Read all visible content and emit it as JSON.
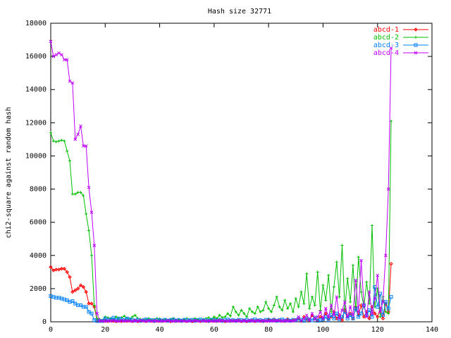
{
  "chart_data": {
    "type": "line",
    "title": "Hash size 32771",
    "ylabel": "chi2-square against random hash",
    "x": [
      0,
      1,
      2,
      3,
      4,
      5,
      6,
      7,
      8,
      9,
      10,
      11,
      12,
      13,
      14,
      15,
      16,
      17,
      18,
      19,
      20,
      21,
      22,
      23,
      24,
      25,
      26,
      27,
      28,
      29,
      30,
      31,
      32,
      33,
      34,
      35,
      36,
      37,
      38,
      39,
      40,
      41,
      42,
      43,
      44,
      45,
      46,
      47,
      48,
      49,
      50,
      51,
      52,
      53,
      54,
      55,
      56,
      57,
      58,
      59,
      60,
      61,
      62,
      63,
      64,
      65,
      66,
      67,
      68,
      69,
      70,
      71,
      72,
      73,
      74,
      75,
      76,
      77,
      78,
      79,
      80,
      81,
      82,
      83,
      84,
      85,
      86,
      87,
      88,
      89,
      90,
      91,
      92,
      93,
      94,
      95,
      96,
      97,
      98,
      99,
      100,
      101,
      102,
      103,
      104,
      105,
      106,
      107,
      108,
      109,
      110,
      111,
      112,
      113,
      114,
      115,
      116,
      117,
      118,
      119,
      120,
      121,
      122,
      123,
      124,
      125
    ],
    "series": [
      {
        "name": "abcd-1",
        "color": "#ff0000",
        "marker": "diamond",
        "values": [
          3300,
          3100,
          3150,
          3150,
          3200,
          3200,
          3000,
          2700,
          1800,
          1900,
          2000,
          2200,
          2100,
          1800,
          1100,
          1100,
          900,
          100,
          50,
          50,
          60,
          40,
          80,
          50,
          30,
          70,
          40,
          60,
          50,
          80,
          40,
          60,
          30,
          50,
          70,
          40,
          60,
          50,
          30,
          60,
          60,
          40,
          80,
          50,
          30,
          70,
          40,
          60,
          50,
          80,
          40,
          60,
          30,
          50,
          70,
          40,
          60,
          50,
          30,
          60,
          60,
          40,
          80,
          50,
          30,
          70,
          40,
          60,
          50,
          80,
          40,
          60,
          30,
          50,
          70,
          40,
          60,
          50,
          30,
          60,
          100,
          60,
          150,
          50,
          120,
          70,
          40,
          160,
          50,
          80,
          100,
          200,
          50,
          300,
          150,
          100,
          400,
          200,
          100,
          300,
          200,
          500,
          150,
          300,
          600,
          200,
          400,
          100,
          700,
          300,
          500,
          200,
          900,
          400,
          1000,
          300,
          600,
          200,
          900,
          500,
          300,
          800,
          200,
          1100,
          600,
          3500
        ]
      },
      {
        "name": "abcd-2",
        "color": "#00c000",
        "marker": "plus",
        "values": [
          11400,
          10900,
          10850,
          10900,
          10950,
          10900,
          10300,
          9700,
          7700,
          7700,
          7800,
          7800,
          7600,
          6500,
          5500,
          4000,
          1000,
          200,
          150,
          100,
          300,
          250,
          200,
          150,
          300,
          200,
          250,
          350,
          200,
          150,
          300,
          400,
          200,
          150,
          100,
          150,
          200,
          100,
          150,
          200,
          150,
          100,
          150,
          100,
          150,
          200,
          100,
          150,
          100,
          150,
          200,
          150,
          100,
          200,
          150,
          100,
          150,
          200,
          250,
          150,
          300,
          200,
          400,
          250,
          300,
          500,
          350,
          900,
          600,
          400,
          700,
          500,
          300,
          800,
          600,
          500,
          900,
          600,
          700,
          1200,
          800,
          600,
          1000,
          1500,
          900,
          700,
          1300,
          800,
          1100,
          600,
          1400,
          900,
          1800,
          1100,
          2900,
          800,
          1500,
          1000,
          3000,
          700,
          2200,
          1300,
          2800,
          600,
          2100,
          3600,
          1500,
          4600,
          800,
          2600,
          1200,
          3400,
          700,
          3900,
          1800,
          900,
          2400,
          1100,
          5800,
          900,
          2000,
          300,
          1500,
          600,
          500,
          12100
        ]
      },
      {
        "name": "abcd-3",
        "color": "#0080ff",
        "marker": "square",
        "values": [
          1550,
          1500,
          1450,
          1450,
          1400,
          1350,
          1300,
          1200,
          1250,
          1100,
          1000,
          1000,
          900,
          900,
          600,
          500,
          100,
          50,
          50,
          50,
          200,
          100,
          150,
          250,
          100,
          200,
          150,
          100,
          200,
          150,
          100,
          80,
          120,
          60,
          100,
          140,
          80,
          100,
          60,
          120,
          100,
          80,
          120,
          60,
          100,
          140,
          80,
          100,
          60,
          120,
          100,
          80,
          120,
          60,
          100,
          140,
          80,
          100,
          60,
          120,
          100,
          80,
          120,
          60,
          100,
          140,
          80,
          100,
          60,
          120,
          100,
          80,
          120,
          60,
          100,
          140,
          80,
          100,
          60,
          120,
          100,
          80,
          120,
          60,
          100,
          140,
          80,
          100,
          60,
          120,
          100,
          180,
          120,
          60,
          200,
          140,
          80,
          250,
          60,
          120,
          150,
          300,
          100,
          400,
          200,
          500,
          150,
          300,
          600,
          200,
          400,
          200,
          800,
          300,
          500,
          1000,
          400,
          700,
          300,
          2100,
          900,
          1700,
          400,
          1200,
          800,
          1500
        ]
      },
      {
        "name": "abcd-4",
        "color": "#c000ff",
        "marker": "cross",
        "values": [
          16900,
          16000,
          16100,
          16200,
          16100,
          15800,
          15800,
          14500,
          14400,
          11000,
          11300,
          11800,
          10600,
          10600,
          8100,
          6600,
          4600,
          500,
          50,
          50,
          30,
          60,
          40,
          80,
          50,
          30,
          70,
          40,
          60,
          50,
          30,
          60,
          40,
          80,
          50,
          30,
          70,
          40,
          60,
          50,
          30,
          60,
          40,
          80,
          50,
          30,
          70,
          40,
          60,
          50,
          30,
          60,
          40,
          80,
          50,
          30,
          70,
          40,
          60,
          50,
          30,
          60,
          40,
          80,
          50,
          30,
          70,
          40,
          60,
          50,
          30,
          60,
          40,
          80,
          50,
          30,
          70,
          40,
          60,
          50,
          30,
          60,
          40,
          80,
          50,
          30,
          70,
          40,
          60,
          50,
          100,
          300,
          50,
          200,
          400,
          100,
          500,
          150,
          300,
          600,
          200,
          800,
          300,
          1000,
          400,
          1500,
          200,
          700,
          1200,
          300,
          900,
          400,
          2500,
          600,
          3700,
          1000,
          300,
          1800,
          500,
          1400,
          2800,
          600,
          1200,
          4000,
          8000,
          16500
        ]
      }
    ],
    "xlim": [
      0,
      140
    ],
    "xticks": [
      0,
      20,
      40,
      60,
      80,
      100,
      120,
      140
    ],
    "ylim": [
      0,
      18000
    ],
    "yticks": [
      0,
      2000,
      4000,
      6000,
      8000,
      10000,
      12000,
      14000,
      16000,
      18000
    ],
    "legend": "top-right"
  }
}
